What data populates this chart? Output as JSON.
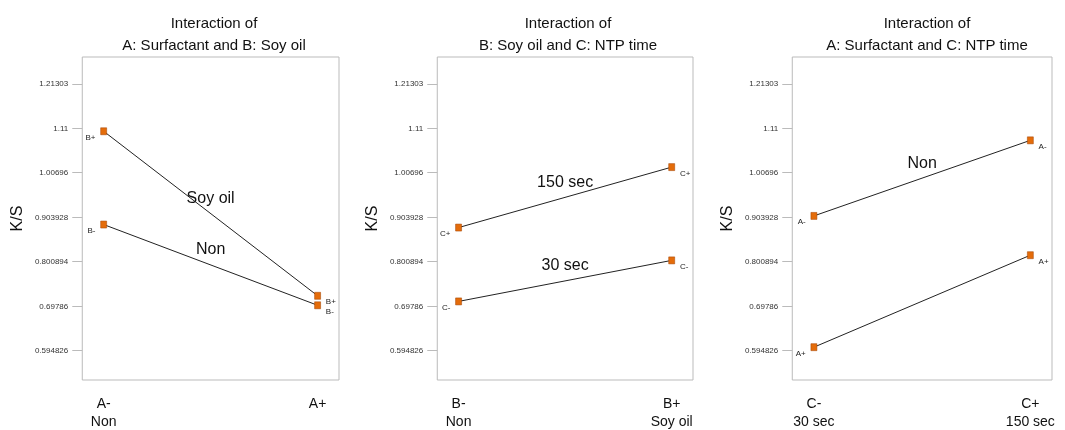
{
  "chart_data": [
    {
      "type": "line",
      "title": "Interaction of\nA: Surfactant and B: Soy oil",
      "ylabel": "K/S",
      "categories": [
        "A-\nNon",
        "A+"
      ],
      "ylim": [
        0.527,
        1.275
      ],
      "yticks": [
        0.594826,
        0.69786,
        0.800894,
        0.903928,
        1.00696,
        1.11,
        1.21303
      ],
      "grid": false,
      "legend": false,
      "marker": "square",
      "line_style": "solid",
      "series": [
        {
          "name": "Soy oil",
          "color": "#e46c0a",
          "values": [
            1.103,
            0.722
          ],
          "value_labels": [
            "B+",
            "B+"
          ]
        },
        {
          "name": "Non",
          "color": "#e46c0a",
          "values": [
            0.887,
            0.7
          ],
          "value_labels": [
            "B-",
            "B-"
          ]
        }
      ]
    },
    {
      "type": "line",
      "title": "Interaction of\nB: Soy oil and C: NTP time",
      "ylabel": "K/S",
      "categories": [
        "B-\nNon",
        "B+\nSoy oil"
      ],
      "ylim": [
        0.527,
        1.275
      ],
      "yticks": [
        0.594826,
        0.69786,
        0.800894,
        0.903928,
        1.00696,
        1.11,
        1.21303
      ],
      "grid": false,
      "legend": false,
      "marker": "square",
      "line_style": "solid",
      "series": [
        {
          "name": "150 sec",
          "color": "#e46c0a",
          "values": [
            0.88,
            1.02
          ],
          "value_labels": [
            "C+",
            "C+"
          ]
        },
        {
          "name": "30 sec",
          "color": "#e46c0a",
          "values": [
            0.709,
            0.804
          ],
          "value_labels": [
            "C-",
            "C-"
          ]
        }
      ]
    },
    {
      "type": "line",
      "title": "Interaction of\nA: Surfactant and C: NTP time",
      "ylabel": "K/S",
      "categories": [
        "C-\n30 sec",
        "C+\n150 sec"
      ],
      "ylim": [
        0.527,
        1.275
      ],
      "yticks": [
        0.594826,
        0.69786,
        0.800894,
        0.903928,
        1.00696,
        1.11,
        1.21303
      ],
      "grid": false,
      "legend": false,
      "marker": "square",
      "line_style": "solid",
      "series": [
        {
          "name": "Non",
          "color": "#e46c0a",
          "values": [
            0.907,
            1.082
          ],
          "value_labels": [
            "A-",
            "A-"
          ]
        },
        {
          "color": "#e46c0a",
          "values": [
            0.603,
            0.816
          ],
          "value_labels": [
            "A+",
            "A+"
          ]
        }
      ]
    }
  ]
}
